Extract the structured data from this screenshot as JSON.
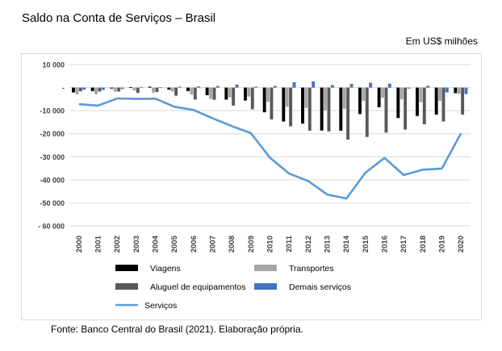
{
  "title": "Saldo na Conta de Serviços – Brasil",
  "unit_note": "Em US$ milhões",
  "source": "Fonte: Banco Central do Brasil (2021). Elaboração própria.",
  "colors": {
    "Viagens": "#000000",
    "Transportes": "#a6a6a6",
    "Aluguel de equipamentos": "#595959",
    "Demais serviços": "#4472c4",
    "Serviços": "#5b9bd5"
  },
  "chart_data": {
    "type": "bar",
    "categories": [
      "2000",
      "2001",
      "2002",
      "2003",
      "2004",
      "2005",
      "2006",
      "2007",
      "2008",
      "2009",
      "2010",
      "2011",
      "2012",
      "2013",
      "2014",
      "2015",
      "2016",
      "2017",
      "2018",
      "2019",
      "2020"
    ],
    "ylim": [
      -60000,
      10000
    ],
    "yticks": [
      10000,
      0,
      -10000,
      -20000,
      -30000,
      -40000,
      -50000,
      -60000
    ],
    "ytick_labels": [
      "10 000",
      "-",
      "-10 000",
      "-20 000",
      "-30 000",
      "-40 000",
      "-50 000",
      "- 60 000"
    ],
    "grid": true,
    "legend_position": "bottom",
    "series": [
      {
        "name": "Viagens",
        "type": "bar",
        "values": [
          -2100,
          -1500,
          -400,
          200,
          400,
          -900,
          -1500,
          -3300,
          -5200,
          -5600,
          -10700,
          -14700,
          -15600,
          -18600,
          -18700,
          -11500,
          -8500,
          -13200,
          -12300,
          -11700,
          -2400
        ]
      },
      {
        "name": "Transportes",
        "type": "bar",
        "values": [
          -2900,
          -2900,
          -1800,
          -1300,
          -2200,
          -1700,
          -3000,
          -4900,
          -4200,
          -3900,
          -6200,
          -8300,
          -8800,
          -9800,
          -9200,
          -5800,
          -4400,
          -5100,
          -6300,
          -5800,
          -2600
        ]
      },
      {
        "name": "Aluguel de equipamentos",
        "type": "bar",
        "values": [
          -1600,
          -1700,
          -1700,
          -2300,
          -1900,
          -3500,
          -5200,
          -5300,
          -7800,
          -9400,
          -13800,
          -16800,
          -18700,
          -19000,
          -22600,
          -21400,
          -19500,
          -18200,
          -15900,
          -14700,
          -11700
        ]
      },
      {
        "name": "Demais serviços",
        "type": "bar",
        "values": [
          -900,
          -1000,
          -600,
          300,
          200,
          400,
          500,
          700,
          1300,
          400,
          700,
          2300,
          2700,
          1100,
          1600,
          2100,
          1700,
          -400,
          800,
          -2100,
          -2800
        ]
      },
      {
        "name": "Serviços",
        "type": "line",
        "values": [
          -7200,
          -7800,
          -4700,
          -4900,
          -4800,
          -8300,
          -9700,
          -13300,
          -16700,
          -19700,
          -30400,
          -37300,
          -40500,
          -46400,
          -48100,
          -36900,
          -30500,
          -37900,
          -35600,
          -35100,
          -19800
        ]
      }
    ]
  }
}
